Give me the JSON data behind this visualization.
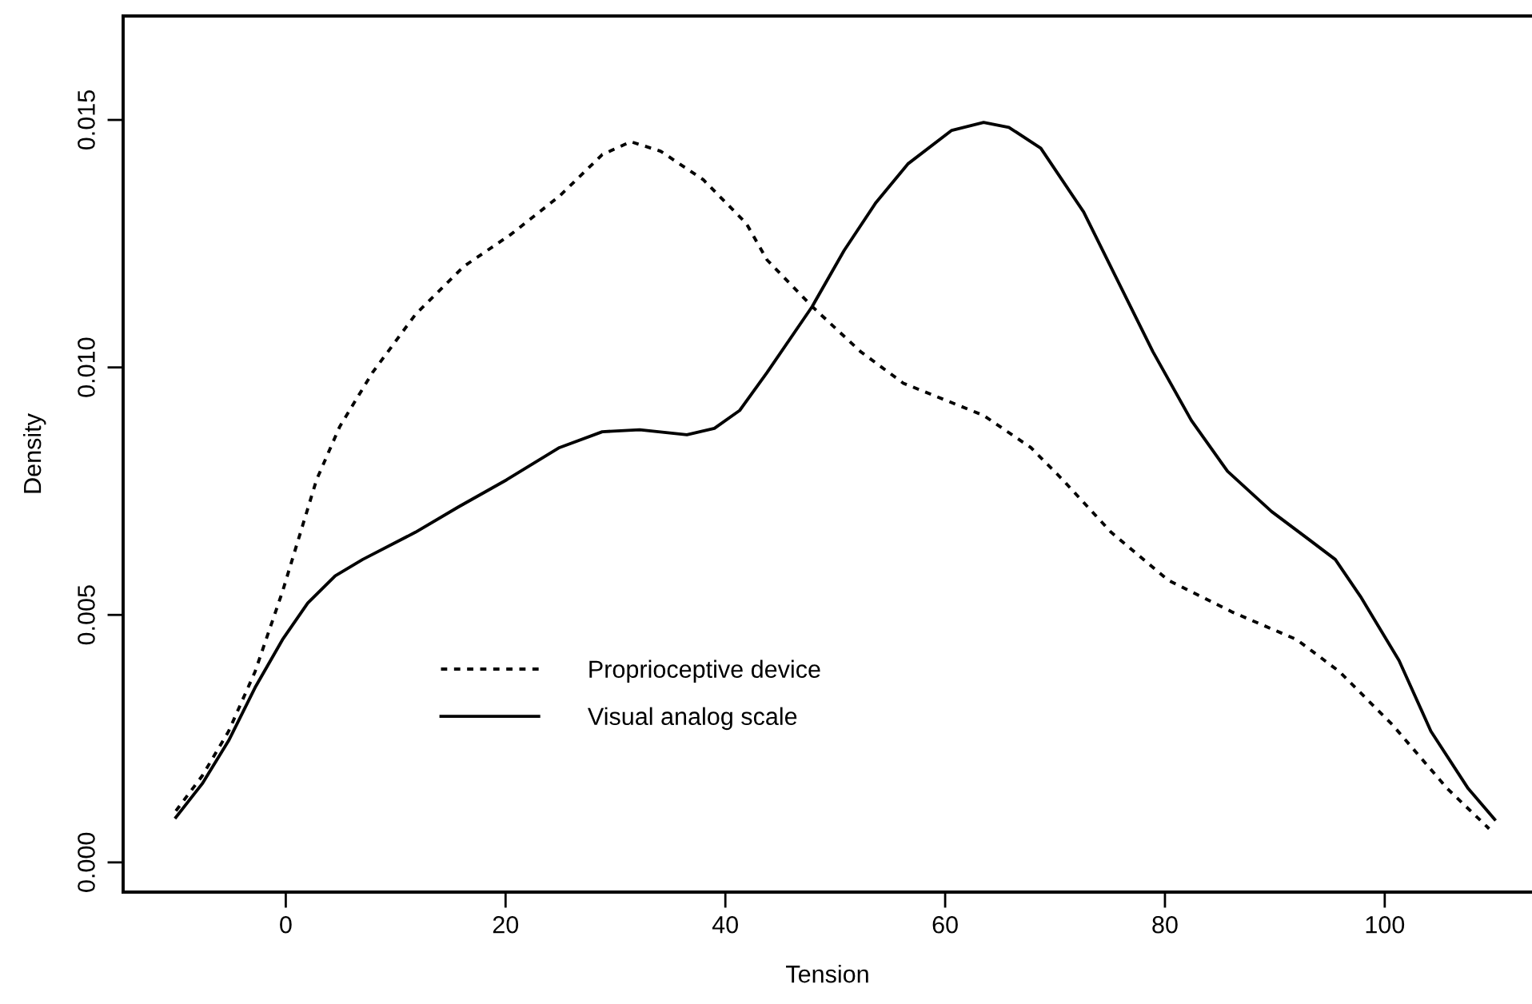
{
  "chart_data": {
    "type": "line",
    "xlabel": "Tension",
    "ylabel": "Density",
    "xlim": [
      -14.8,
      113.4
    ],
    "ylim": [
      -0.0006,
      0.0171
    ],
    "xticks": [
      0,
      20,
      40,
      60,
      80,
      100
    ],
    "yticks": [
      {
        "value": 0,
        "label": "0.000"
      },
      {
        "value": 0.005,
        "label": "0.005"
      },
      {
        "value": 0.01,
        "label": "0.010"
      },
      {
        "value": 0.015,
        "label": "0.015"
      }
    ],
    "grid": false,
    "legend": "bottom left",
    "series": [
      {
        "name": "Proprioceptive device",
        "color": "#000000",
        "line_style": "dotted",
        "x": [
          -10,
          -7.6,
          -5.2,
          -2.8,
          -0.3,
          2.8,
          4.9,
          7.9,
          11.8,
          16.2,
          20.5,
          24.9,
          28.8,
          31.4,
          34.1,
          38.0,
          41.9,
          43.8,
          47.9,
          52.3,
          56.2,
          63.5,
          67.8,
          70.7,
          75.1,
          80.3,
          86.2,
          92.0,
          95.9,
          100.7,
          105.7,
          109.5
        ],
        "values": [
          0.00104,
          0.00175,
          0.00265,
          0.00385,
          0.00547,
          0.00773,
          0.0088,
          0.0099,
          0.01107,
          0.01204,
          0.01269,
          0.01346,
          0.0143,
          0.01456,
          0.01437,
          0.01379,
          0.01291,
          0.01217,
          0.01123,
          0.01032,
          0.00968,
          0.00903,
          0.00838,
          0.00773,
          0.00667,
          0.0057,
          0.00505,
          0.0045,
          0.00385,
          0.00278,
          0.00149,
          0.00068
        ]
      },
      {
        "name": "Visual analog scale",
        "color": "#000000",
        "line_style": "solid",
        "x": [
          -10,
          -7.6,
          -5.2,
          -2.8,
          -0.3,
          2.0,
          4.5,
          7.0,
          11.8,
          15.7,
          20.1,
          24.9,
          28.8,
          32.2,
          36.5,
          39.0,
          41.3,
          43.8,
          47.9,
          50.8,
          53.7,
          56.6,
          60.6,
          63.5,
          65.8,
          68.7,
          72.6,
          75.5,
          78.9,
          82.4,
          85.7,
          89.7,
          93.0,
          95.5,
          97.8,
          101.3,
          104.2,
          107.6,
          110.0
        ],
        "values": [
          0.00091,
          0.00159,
          0.00246,
          0.00353,
          0.0045,
          0.00524,
          0.00579,
          0.00612,
          0.00667,
          0.00718,
          0.00773,
          0.00838,
          0.0087,
          0.00874,
          0.00864,
          0.00877,
          0.00913,
          0.0099,
          0.01123,
          0.01236,
          0.01333,
          0.01411,
          0.01479,
          0.01495,
          0.01485,
          0.01443,
          0.01314,
          0.01184,
          0.01032,
          0.00893,
          0.0079,
          0.00709,
          0.00654,
          0.00612,
          0.00537,
          0.00408,
          0.00265,
          0.00149,
          0.00087
        ]
      }
    ]
  }
}
